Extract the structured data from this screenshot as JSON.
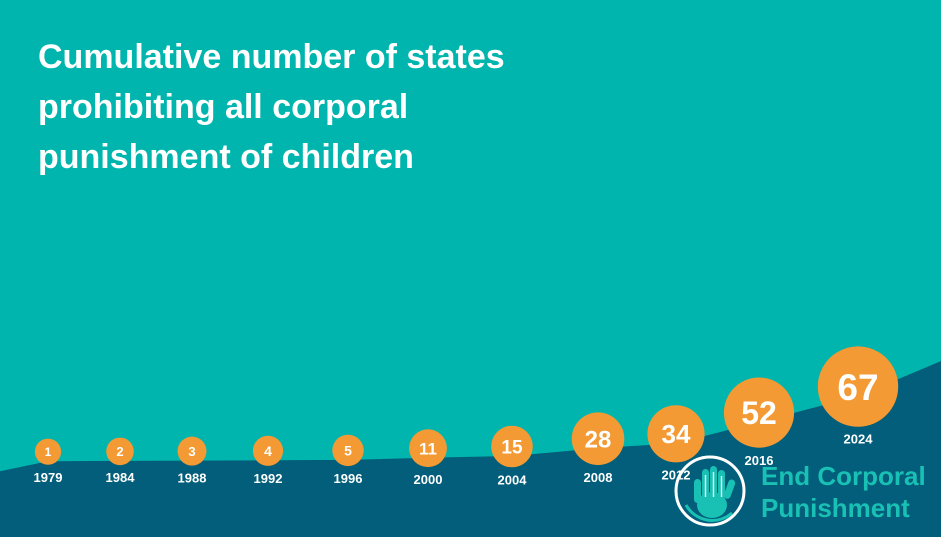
{
  "title_lines": [
    "Cumulative number of states",
    "prohibiting all corporal",
    "punishment of children"
  ],
  "logo": {
    "lines": [
      "End Corporal",
      "Punishment"
    ],
    "icon": "hand-globe-icon"
  },
  "colors": {
    "background": "#00b5ad",
    "area": "#025e7a",
    "bubble": "#f39a34",
    "text": "#ffffff",
    "logo_text": "#19c0b4"
  },
  "chart_data": {
    "type": "area",
    "title": "Cumulative number of states prohibiting all corporal punishment of children",
    "x": [
      1979,
      1984,
      1988,
      1992,
      1996,
      2000,
      2004,
      2008,
      2012,
      2016,
      2024
    ],
    "values": [
      1,
      2,
      3,
      4,
      5,
      11,
      15,
      28,
      34,
      52,
      67
    ],
    "labels_on_bubbles": true,
    "grid": false,
    "legend": "none"
  }
}
